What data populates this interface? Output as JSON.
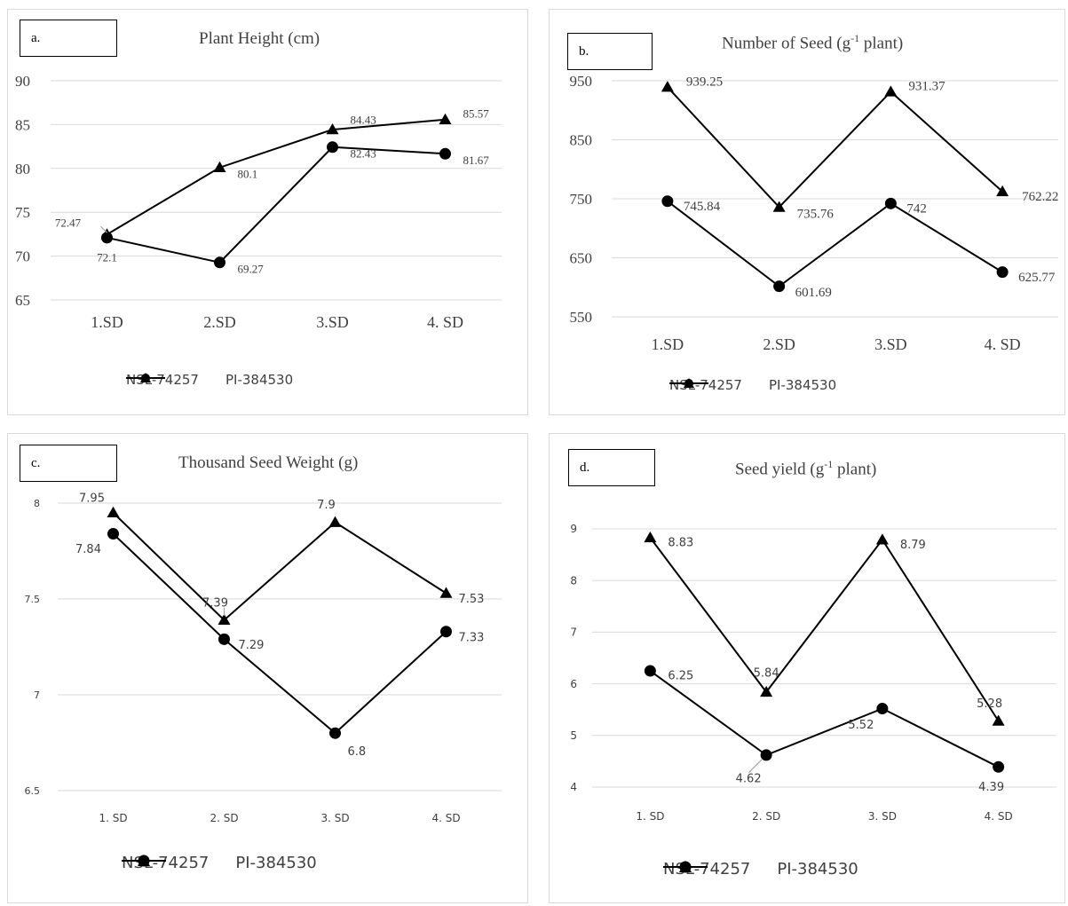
{
  "chart_data": [
    {
      "type": "line",
      "panel": "a.",
      "title": "Plant Height (cm)",
      "categories": [
        "1.SD",
        "2.SD",
        "3.SD",
        "4. SD"
      ],
      "ylim": [
        65,
        90
      ],
      "yticks": [
        "90",
        "85",
        "80",
        "75",
        "70",
        "65"
      ],
      "grid": true,
      "legend_position": "bottom",
      "series": [
        {
          "name": "NSL-74257",
          "marker": "circle",
          "values": [
            72.1,
            69.27,
            82.43,
            81.67
          ],
          "labels": [
            "72.1",
            "69.27",
            "82.43",
            "81.67"
          ]
        },
        {
          "name": "PI-384530",
          "marker": "triangle",
          "values": [
            72.47,
            80.1,
            84.43,
            85.57
          ],
          "labels": [
            "72.47",
            "80.1",
            "84.43",
            "85.57"
          ]
        }
      ]
    },
    {
      "type": "line",
      "panel": "b.",
      "title": "Number of Seed (g",
      "title_sup": "-1",
      "title_tail": " plant)",
      "categories": [
        "1.SD",
        "2.SD",
        "3.SD",
        "4. SD"
      ],
      "ylim": [
        550,
        950
      ],
      "yticks": [
        "950",
        "850",
        "750",
        "650",
        "550"
      ],
      "grid": true,
      "legend_position": "bottom",
      "series": [
        {
          "name": "NSL-74257",
          "marker": "circle",
          "values": [
            745.84,
            601.69,
            742,
            625.77
          ],
          "labels": [
            "745.84",
            "601.69",
            "742",
            "625.77"
          ]
        },
        {
          "name": "PI-384530",
          "marker": "triangle",
          "values": [
            939.25,
            735.76,
            931.37,
            762.22
          ],
          "labels": [
            "939.25",
            "735.76",
            "931.37",
            "762.22"
          ]
        }
      ]
    },
    {
      "type": "line",
      "panel": "c.",
      "title": "Thousand Seed Weight (g)",
      "categories": [
        "1. SD",
        "2. SD",
        "3. SD",
        "4. SD"
      ],
      "ylim": [
        6.5,
        8
      ],
      "yticks": [
        "8",
        "7.5",
        "7",
        "6.5"
      ],
      "grid": true,
      "legend_position": "bottom",
      "series": [
        {
          "name": "NSL-74257",
          "marker": "circle",
          "values": [
            7.84,
            7.29,
            6.8,
            7.33
          ],
          "labels": [
            "7.84",
            "7.29",
            "6.8",
            "7.33"
          ]
        },
        {
          "name": "PI-384530",
          "marker": "triangle",
          "values": [
            7.95,
            7.39,
            7.9,
            7.53
          ],
          "labels": [
            "7.95",
            "7.39",
            "7.9",
            "7.53"
          ]
        }
      ]
    },
    {
      "type": "line",
      "panel": "d.",
      "title": "Seed yield (g",
      "title_sup": "-1",
      "title_tail": " plant)",
      "categories": [
        "1. SD",
        "2. SD",
        "3. SD",
        "4. SD"
      ],
      "ylim": [
        4,
        9
      ],
      "yticks": [
        "9",
        "8",
        "7",
        "6",
        "5",
        "4"
      ],
      "grid": true,
      "legend_position": "bottom",
      "series": [
        {
          "name": "NSL-74257",
          "marker": "circle",
          "values": [
            6.25,
            4.62,
            5.52,
            4.39
          ],
          "labels": [
            "6.25",
            "4.62",
            "5.52",
            "4.39"
          ]
        },
        {
          "name": "PI-384530",
          "marker": "triangle",
          "values": [
            8.83,
            5.84,
            8.79,
            5.28
          ],
          "labels": [
            "8.83",
            "5.84",
            "8.79",
            "5.28"
          ]
        }
      ]
    }
  ],
  "colors": {
    "line": "#000000",
    "grid": "#d9d9d9",
    "text": "#404040",
    "border": "#d9d9d9",
    "leader": "#a6a6a6"
  }
}
